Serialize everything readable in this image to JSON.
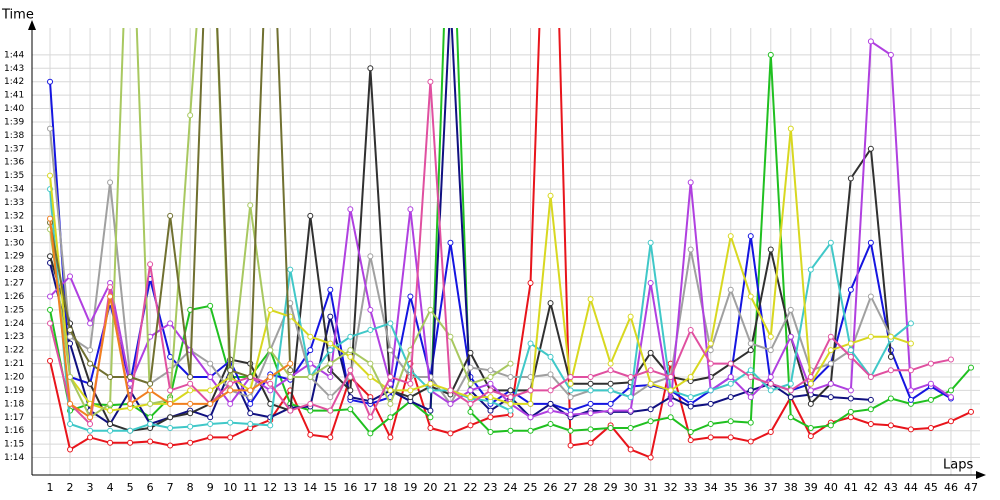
{
  "chart_data": {
    "type": "line",
    "xlabel": "Laps",
    "ylabel": "Time",
    "x": [
      1,
      2,
      3,
      4,
      5,
      6,
      7,
      8,
      9,
      10,
      11,
      12,
      13,
      14,
      15,
      16,
      17,
      18,
      19,
      20,
      21,
      22,
      23,
      24,
      25,
      26,
      27,
      28,
      29,
      30,
      31,
      32,
      33,
      34,
      35,
      36,
      37,
      38,
      39,
      40,
      41,
      42,
      43,
      44,
      45,
      46,
      47
    ],
    "xticks": [
      1,
      2,
      3,
      4,
      5,
      6,
      7,
      8,
      9,
      10,
      11,
      12,
      13,
      14,
      15,
      16,
      17,
      18,
      19,
      20,
      21,
      22,
      23,
      24,
      25,
      26,
      27,
      28,
      29,
      30,
      31,
      32,
      33,
      34,
      35,
      36,
      37,
      38,
      39,
      40,
      41,
      42,
      43,
      44,
      45,
      46,
      47
    ],
    "xlim": [
      0.1,
      47.45
    ],
    "ylim": [
      72.7,
      106
    ],
    "yticks": [
      {
        "value": 74,
        "label": "1:14"
      },
      {
        "value": 75,
        "label": "1:15"
      },
      {
        "value": 76,
        "label": "1:16"
      },
      {
        "value": 77,
        "label": "1:17"
      },
      {
        "value": 78,
        "label": "1:18"
      },
      {
        "value": 79,
        "label": "1:19"
      },
      {
        "value": 80,
        "label": "1:20"
      },
      {
        "value": 81,
        "label": "1:21"
      },
      {
        "value": 82,
        "label": "1:22"
      },
      {
        "value": 83,
        "label": "1:23"
      },
      {
        "value": 84,
        "label": "1:24"
      },
      {
        "value": 85,
        "label": "1:25"
      },
      {
        "value": 86,
        "label": "1:26"
      },
      {
        "value": 87,
        "label": "1:27"
      },
      {
        "value": 88,
        "label": "1:28"
      },
      {
        "value": 89,
        "label": "1:29"
      },
      {
        "value": 90,
        "label": "1:30"
      },
      {
        "value": 91,
        "label": "1:31"
      },
      {
        "value": 92,
        "label": "1:32"
      },
      {
        "value": 93,
        "label": "1:33"
      },
      {
        "value": 94,
        "label": "1:34"
      },
      {
        "value": 95,
        "label": "1:35"
      },
      {
        "value": 96,
        "label": "1:36"
      },
      {
        "value": 97,
        "label": "1:37"
      },
      {
        "value": 98,
        "label": "1:38"
      },
      {
        "value": 99,
        "label": "1:39"
      },
      {
        "value": 100,
        "label": "1:40"
      },
      {
        "value": 101,
        "label": "1:41"
      },
      {
        "value": 102,
        "label": "1:42"
      },
      {
        "value": 103,
        "label": "1:43"
      },
      {
        "value": 104,
        "label": "1:44"
      }
    ],
    "grid": true,
    "series": [
      {
        "color": "#e8141b",
        "values": [
          81.2,
          74.6,
          75.5,
          75.1,
          75.1,
          75.2,
          74.9,
          75.1,
          75.5,
          75.5,
          76.2,
          76.8,
          79,
          75.7,
          75.5,
          80,
          78.5,
          75.5,
          81,
          76.2,
          75.8,
          76.4,
          77,
          77.2,
          87,
          130,
          74.9,
          75.1,
          76.4,
          74.6,
          74,
          81,
          75.3,
          75.5,
          75.5,
          75.2,
          75.9,
          78.5,
          75.6,
          76.6,
          77,
          76.5,
          76.4,
          76.1,
          76.2,
          76.7,
          77.4
        ]
      },
      {
        "color": "#20c020",
        "values": [
          85,
          77.5,
          78,
          77.9,
          78,
          77,
          78.5,
          85,
          85.3,
          80,
          80,
          82,
          78,
          77.5,
          77.5,
          77.6,
          75.8,
          77,
          78.2,
          77,
          120,
          77.4,
          75.9,
          76,
          76,
          76.5,
          76,
          76.1,
          76.2,
          76.2,
          76.7,
          77,
          75.9,
          76.5,
          76.7,
          76.6,
          104,
          77,
          76.2,
          76.4,
          77.4,
          77.6,
          78.4,
          78,
          78.3,
          79,
          80.7
        ]
      },
      {
        "color": "#1515e0",
        "values": [
          102,
          80,
          79.5,
          85.5,
          79.5,
          87.3,
          81.5,
          80,
          80,
          81.2,
          78,
          80.2,
          79.8,
          82,
          86.5,
          78.3,
          78,
          78.5,
          86,
          80,
          90,
          80,
          78,
          79,
          78,
          78,
          77.5,
          78,
          78,
          79.3,
          79.4,
          79,
          78,
          79,
          80,
          90.5,
          79.5,
          79,
          79.5,
          81,
          86.5,
          90,
          82,
          78.3,
          79.3,
          78.4,
          null
        ]
      },
      {
        "color": "#101080",
        "values": [
          88.5,
          82.5,
          77.5,
          76.5,
          79,
          76.5,
          77,
          77.5,
          77,
          80.5,
          77.3,
          77,
          77.7,
          77.8,
          84.5,
          78.5,
          78.2,
          79,
          78.2,
          77.5,
          108,
          79,
          77.5,
          78.5,
          77,
          78,
          77,
          77.5,
          77.4,
          77.4,
          77.6,
          78.5,
          77.8,
          78,
          78.5,
          79,
          79.5,
          78.5,
          78.7,
          78.5,
          78.4,
          78.3,
          null,
          null,
          null,
          null,
          null
        ]
      },
      {
        "color": "#303030",
        "values": [
          89,
          84,
          79.5,
          76.5,
          76,
          76.2,
          77,
          77.3,
          78,
          81.3,
          81,
          78,
          77.5,
          92,
          80.5,
          79,
          103,
          79,
          78.5,
          79.3,
          78.7,
          81.8,
          79,
          79,
          79,
          85.5,
          79.5,
          79.5,
          79.5,
          79.6,
          81.8,
          80,
          79.7,
          80,
          81,
          82,
          89.5,
          83,
          78,
          79.5,
          94.8,
          97,
          81.5,
          null,
          null,
          null,
          null
        ]
      },
      {
        "color": "#a0a0a0",
        "values": [
          98.5,
          83,
          82,
          94.5,
          80,
          79.5,
          80.5,
          82,
          81,
          79,
          78.5,
          82,
          85.5,
          80,
          78.5,
          80,
          89,
          82,
          80,
          80,
          78,
          80.7,
          80.5,
          80,
          80,
          80.2,
          78.5,
          79,
          79,
          78.5,
          79.5,
          80,
          89.5,
          82,
          86.5,
          82.5,
          82,
          85,
          80.5,
          81,
          82,
          86,
          83,
          null,
          null,
          null,
          null
        ]
      },
      {
        "color": "#b040e0",
        "values": [
          86,
          87.5,
          84,
          87,
          79.5,
          83,
          84,
          82,
          80,
          78,
          80,
          79,
          80,
          81,
          80,
          92.5,
          85,
          79.5,
          92.5,
          79,
          78,
          79,
          79.5,
          78,
          77,
          77.5,
          77.2,
          77.3,
          77.5,
          77.5,
          87,
          78,
          94.5,
          79,
          80,
          78.5,
          80,
          83,
          79,
          79.5,
          79,
          105,
          104,
          79,
          79.5,
          78.5,
          null
        ]
      },
      {
        "color": "#40c8c8",
        "values": [
          94,
          76.5,
          76,
          76,
          76,
          76.5,
          76.2,
          76.3,
          76.5,
          76.6,
          76.5,
          76.4,
          88,
          80,
          82,
          83,
          83.5,
          84,
          80.5,
          79,
          79,
          78.4,
          78.2,
          77.5,
          82.5,
          81.5,
          79,
          79,
          79,
          78.5,
          90,
          79,
          78.5,
          79,
          79.5,
          80.5,
          79,
          79.5,
          88,
          90,
          82,
          80,
          82.8,
          84,
          null,
          null,
          null
        ]
      },
      {
        "color": "#d8d820",
        "values": [
          95,
          80,
          78,
          77.5,
          77.7,
          78,
          78,
          79,
          79,
          80,
          79,
          85,
          84.5,
          83,
          82.5,
          81.5,
          80,
          79,
          79,
          79.5,
          79,
          78.5,
          78.5,
          78,
          78,
          93.5,
          79.5,
          85.8,
          81,
          84.5,
          79.5,
          79,
          80,
          82.5,
          90.5,
          86,
          83,
          98.5,
          79.5,
          82,
          82.5,
          83,
          83,
          82.5,
          null,
          null,
          null
        ]
      },
      {
        "color": "#a8c860",
        "values": [
          91,
          80,
          77,
          78,
          120,
          78,
          78.3,
          99.5,
          120,
          79,
          92.8,
          82,
          80,
          80,
          81,
          82,
          81,
          78,
          82,
          85,
          83,
          79.5,
          80,
          81,
          null,
          null,
          null,
          null,
          null,
          null,
          null,
          null,
          null,
          null,
          null,
          null,
          null,
          null,
          null,
          null,
          null,
          null,
          null,
          null,
          null,
          null,
          null
        ]
      },
      {
        "color": "#e050a0",
        "values": [
          84,
          78,
          76.5,
          86.7,
          78,
          88.4,
          79,
          79.5,
          78,
          79.5,
          80,
          79.5,
          77.5,
          78,
          77.5,
          80.5,
          77,
          80,
          79.5,
          102,
          79,
          78,
          79,
          78.5,
          79,
          79,
          80,
          80,
          80.5,
          80,
          80.5,
          80,
          83.5,
          81,
          81,
          80,
          79.5,
          79,
          80,
          83,
          81.5,
          80,
          80.5,
          80.5,
          81,
          81.3,
          null
        ]
      },
      {
        "color": "#707030",
        "values": [
          91.5,
          83.5,
          81,
          80,
          80,
          79.5,
          92,
          80,
          120,
          80.5,
          80,
          120,
          80.5,
          null,
          null,
          null,
          null,
          null,
          null,
          null,
          null,
          null,
          null,
          null,
          null,
          null,
          null,
          null,
          null,
          null,
          null,
          null,
          null,
          null,
          null,
          null,
          null,
          null,
          null,
          null,
          null,
          null,
          null,
          null,
          null,
          null,
          null
        ]
      },
      {
        "color": "#f08020",
        "values": [
          91.8,
          78,
          77,
          86,
          78,
          79,
          78,
          78,
          78,
          79,
          79,
          80,
          81,
          null,
          null,
          null,
          null,
          null,
          null,
          null,
          null,
          null,
          null,
          null,
          null,
          null,
          null,
          null,
          null,
          null,
          null,
          null,
          null,
          null,
          null,
          null,
          null,
          null,
          null,
          null,
          null,
          null,
          null,
          null,
          null,
          null,
          null
        ]
      }
    ]
  }
}
